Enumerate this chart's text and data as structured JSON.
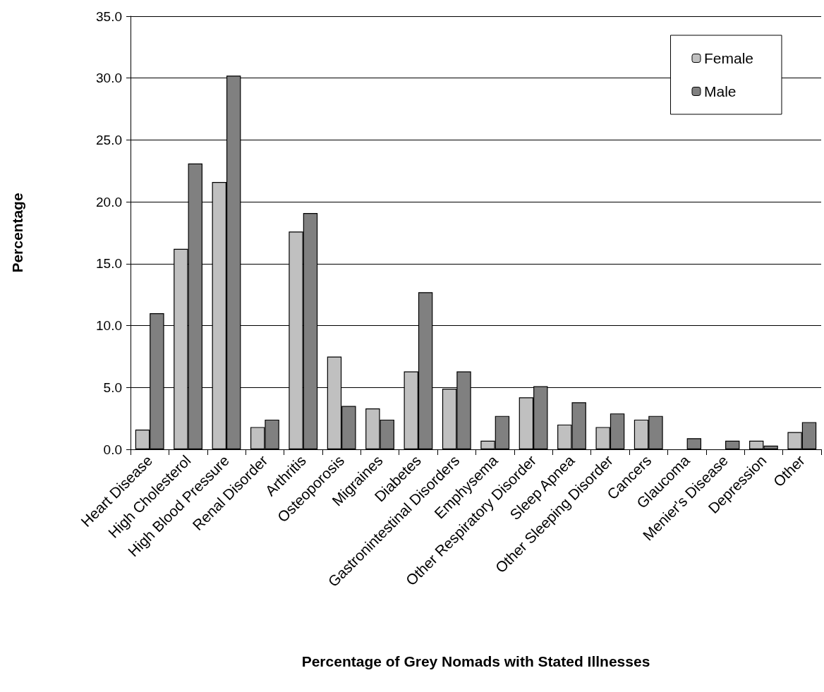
{
  "chart_data": {
    "type": "bar",
    "xlabel": "Percentage of Grey Nomads with Stated Illnesses",
    "ylabel": "Percentage",
    "categories": [
      "Heart Disease",
      "High Cholesterol",
      "High Blood Pressure",
      "Renal Disorder",
      "Arthritis",
      "Osteoporosis",
      "Migraines",
      "Diabetes",
      "Gastronintestinal Disorders",
      "Emphysema",
      "Other Respiratory Disorder",
      "Sleep Apnea",
      "Other Sleeping Disorder",
      "Cancers",
      "Glaucoma",
      "Menier's Disease",
      "Depression",
      "Other"
    ],
    "series": [
      {
        "name": "Female",
        "color": "#c0c0c0",
        "values": [
          1.6,
          16.2,
          21.6,
          1.8,
          17.6,
          7.5,
          3.3,
          6.3,
          4.9,
          0.7,
          4.2,
          2.0,
          1.8,
          2.4,
          0,
          0,
          0.7,
          1.4
        ]
      },
      {
        "name": "Male",
        "color": "#808080",
        "values": [
          11.0,
          23.1,
          30.2,
          2.4,
          19.1,
          3.5,
          2.4,
          12.7,
          6.3,
          2.7,
          5.1,
          3.8,
          2.9,
          2.7,
          0.9,
          0.7,
          0.3,
          2.2
        ]
      }
    ],
    "ylim": [
      0,
      35
    ],
    "yticks": [
      {
        "value": 0,
        "label": "0.0"
      },
      {
        "value": 5,
        "label": "5.0"
      },
      {
        "value": 10,
        "label": "10.0"
      },
      {
        "value": 15,
        "label": "15.0"
      },
      {
        "value": 20,
        "label": "20.0"
      },
      {
        "value": 25,
        "label": "25.0"
      },
      {
        "value": 30,
        "label": "30.0"
      },
      {
        "value": 35,
        "label": "35.0"
      }
    ],
    "grid": "y",
    "legend": "top right"
  }
}
